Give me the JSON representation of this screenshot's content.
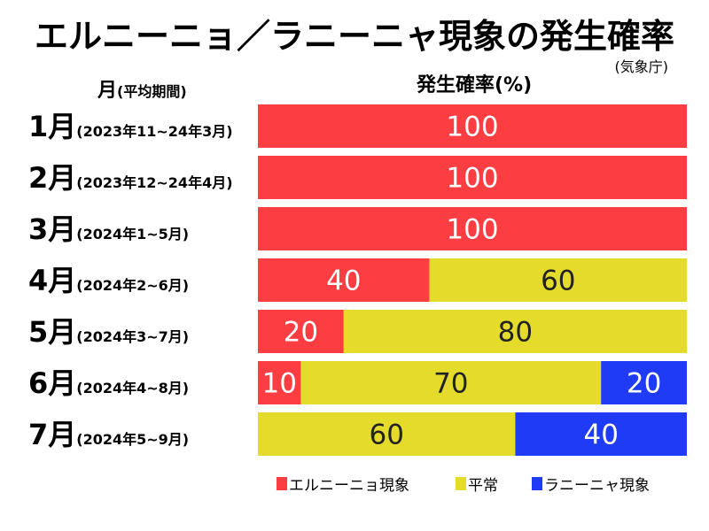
{
  "title": "エルニーニョ／ラニーニャ現象の発生確率",
  "source": "(気象庁)",
  "header": {
    "month_label": "月",
    "period_label": "(平均期間)",
    "prob_label": "発生確率(%)"
  },
  "colors": {
    "el_nino": "#FC3D42",
    "normal": "#E5DB2B",
    "la_nina": "#1F3BF5"
  },
  "chart_data": {
    "type": "bar",
    "orientation": "horizontal",
    "stacked": true,
    "title": "エルニーニョ／ラニーニャ現象の発生確率",
    "xlabel": "発生確率(%)",
    "ylabel": "月(平均期間)",
    "xlim": [
      0,
      100
    ],
    "categories": [
      "1月",
      "2月",
      "3月",
      "4月",
      "5月",
      "6月",
      "7月"
    ],
    "periods": [
      "(2023年11~24年3月)",
      "(2023年12~24年4月)",
      "(2024年1~5月)",
      "(2024年2~6月)",
      "(2024年3~7月)",
      "(2024年4~8月)",
      "(2024年5~9月)"
    ],
    "series": [
      {
        "name": "エルニーニョ現象",
        "values": [
          100,
          100,
          100,
          40,
          20,
          10,
          0
        ]
      },
      {
        "name": "平常",
        "values": [
          0,
          0,
          0,
          60,
          80,
          70,
          60
        ]
      },
      {
        "name": "ラニーニャ現象",
        "values": [
          0,
          0,
          0,
          0,
          0,
          20,
          40
        ]
      }
    ],
    "legend": [
      "エルニーニョ現象",
      "平常",
      "ラニーニャ現象"
    ],
    "legend_position": "bottom"
  }
}
